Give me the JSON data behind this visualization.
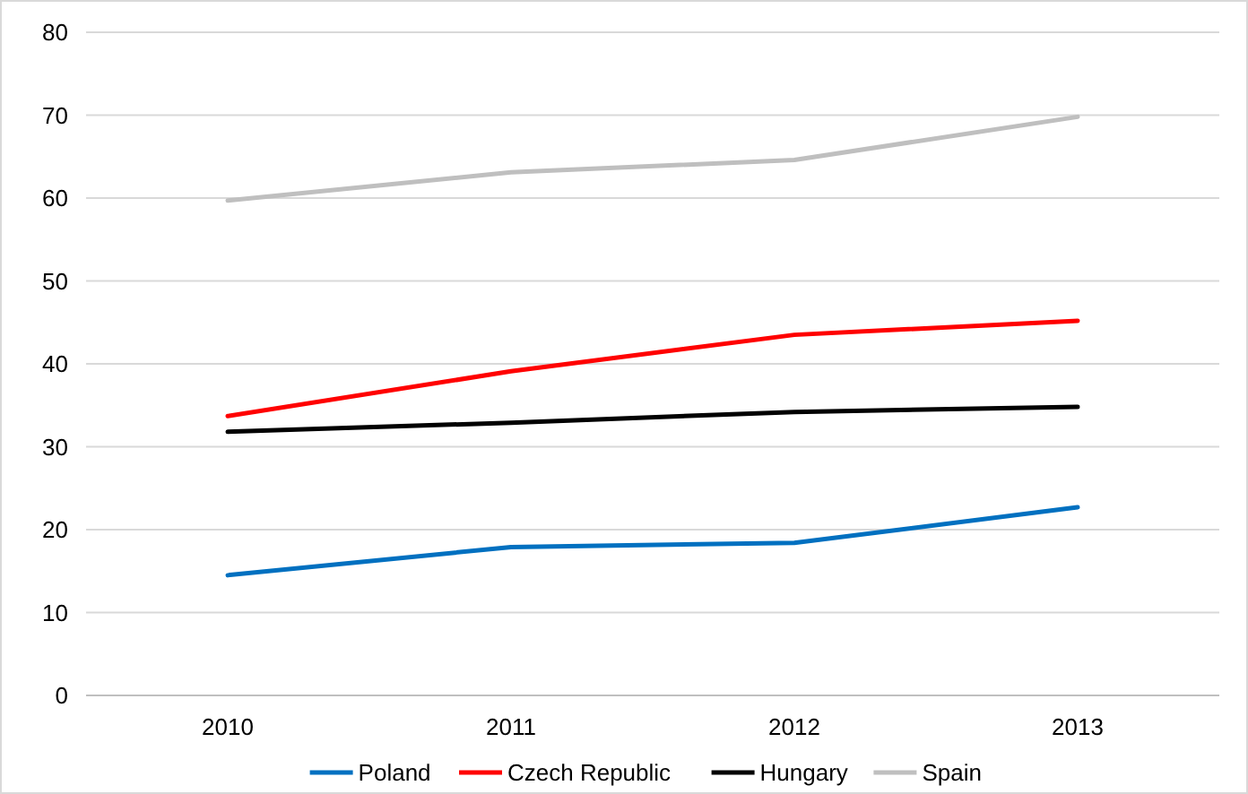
{
  "chart_data": {
    "type": "line",
    "categories": [
      "2010",
      "2011",
      "2012",
      "2013"
    ],
    "series": [
      {
        "name": "Poland",
        "color": "#0070c0",
        "values": [
          14.5,
          17.9,
          18.4,
          22.7
        ]
      },
      {
        "name": "Czech Republic",
        "color": "#ff0000",
        "values": [
          33.7,
          39.1,
          43.5,
          45.2
        ]
      },
      {
        "name": "Hungary",
        "color": "#000000",
        "values": [
          31.8,
          32.9,
          34.2,
          34.8
        ]
      },
      {
        "name": "Spain",
        "color": "#bfbfbf",
        "values": [
          59.7,
          63.1,
          64.6,
          69.8
        ]
      }
    ],
    "ylim": [
      0,
      80
    ],
    "yticks": [
      0,
      10,
      20,
      30,
      40,
      50,
      60,
      70,
      80
    ],
    "grid": "y",
    "legend": "bottom",
    "marker": "none",
    "line_style": "solid"
  }
}
